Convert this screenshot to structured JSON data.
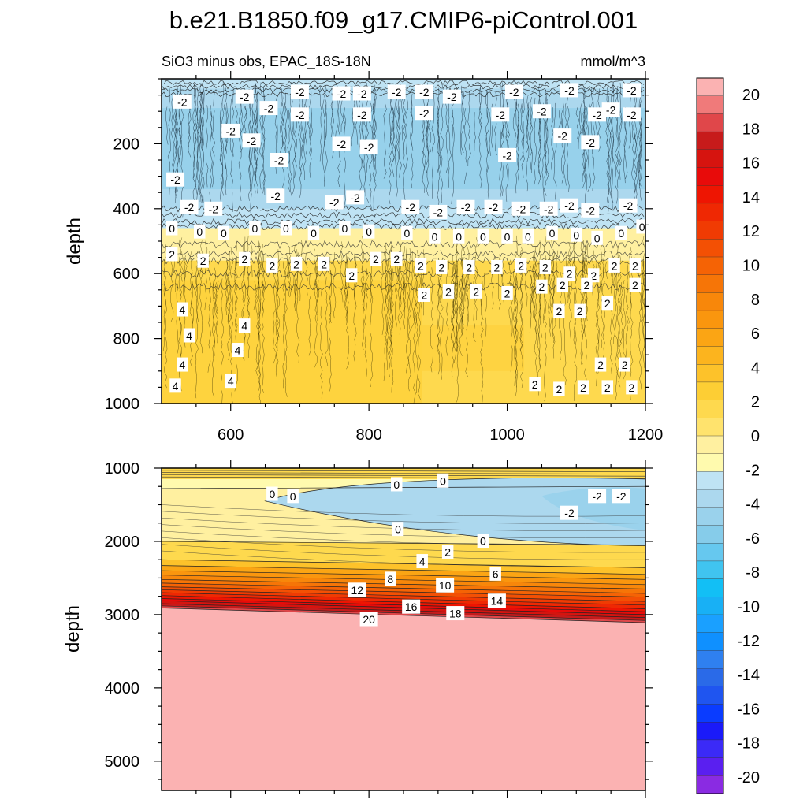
{
  "figure_title": "b.e21.B1850.f09_g17.CMIP6-piControl.001",
  "subtitle_left": "SiO3 minus obs, EPAC_18S-18N",
  "subtitle_right": "mmol/m^3",
  "colors": {
    "negative_ramp": [
      "#8a2be2",
      "#5a1ff0",
      "#3b2af7",
      "#1a1af9",
      "#0a3cff",
      "#1f55f0",
      "#2a6ae8",
      "#2f80f0",
      "#0f90ff",
      "#1aa0ff",
      "#18b0f5",
      "#12bff5",
      "#40c4f0",
      "#66c8ef",
      "#86ccea",
      "#9ad2ec",
      "#acd8ee",
      "#bfe3f4"
    ],
    "positive_ramp": [
      "#fffaae",
      "#fff0a0",
      "#ffe36d",
      "#fed94e",
      "#fdce34",
      "#fdc22a",
      "#fcb41e",
      "#fba514",
      "#fa960e",
      "#f8870a",
      "#f67507",
      "#f56305",
      "#f35004",
      "#f03b03",
      "#ef2803",
      "#ee1502",
      "#e80b0a",
      "#d6140f",
      "#c71b1b",
      "#e0474a",
      "#f07a7a",
      "#fbb2b2"
    ]
  },
  "chart_data": [
    {
      "type": "contour",
      "panel": "upper",
      "ylabel": "depth",
      "xlim": [
        500,
        1200
      ],
      "ylim": [
        1000,
        0
      ],
      "xticks": [
        "600",
        "800",
        "1000",
        "1200"
      ],
      "yticks": [
        "200",
        "400",
        "600",
        "800",
        "1000"
      ],
      "depth_bands": [
        {
          "depth_top": 0,
          "depth_bottom": 30,
          "value": -1
        },
        {
          "depth_top": 30,
          "depth_bottom": 400,
          "value": -2
        },
        {
          "depth_top": 400,
          "depth_bottom": 460,
          "value": -0.5
        },
        {
          "depth_top": 460,
          "depth_bottom": 560,
          "value": 1
        },
        {
          "depth_top": 560,
          "depth_bottom": 1000,
          "value": 3
        }
      ],
      "contour_labels": [
        {
          "x": 530,
          "depth": 70,
          "text": "-2"
        },
        {
          "x": 620,
          "depth": 55,
          "text": "-2"
        },
        {
          "x": 700,
          "depth": 40,
          "text": "-2"
        },
        {
          "x": 760,
          "depth": 45,
          "text": "-2"
        },
        {
          "x": 790,
          "depth": 45,
          "text": "-2"
        },
        {
          "x": 840,
          "depth": 40,
          "text": "-2"
        },
        {
          "x": 880,
          "depth": 40,
          "text": "-2"
        },
        {
          "x": 920,
          "depth": 55,
          "text": "-2"
        },
        {
          "x": 1010,
          "depth": 40,
          "text": "-2"
        },
        {
          "x": 1090,
          "depth": 35,
          "text": "-2"
        },
        {
          "x": 1180,
          "depth": 35,
          "text": "-2"
        },
        {
          "x": 655,
          "depth": 90,
          "text": "-2"
        },
        {
          "x": 700,
          "depth": 110,
          "text": "-2"
        },
        {
          "x": 790,
          "depth": 110,
          "text": "-2"
        },
        {
          "x": 880,
          "depth": 105,
          "text": "-2"
        },
        {
          "x": 990,
          "depth": 110,
          "text": "-2"
        },
        {
          "x": 1050,
          "depth": 100,
          "text": "-2"
        },
        {
          "x": 1130,
          "depth": 110,
          "text": "-2"
        },
        {
          "x": 1150,
          "depth": 95,
          "text": "-2"
        },
        {
          "x": 1180,
          "depth": 110,
          "text": "-2"
        },
        {
          "x": 600,
          "depth": 160,
          "text": "-2"
        },
        {
          "x": 630,
          "depth": 190,
          "text": "-2"
        },
        {
          "x": 760,
          "depth": 200,
          "text": "-2"
        },
        {
          "x": 800,
          "depth": 210,
          "text": "-2"
        },
        {
          "x": 1080,
          "depth": 175,
          "text": "-2"
        },
        {
          "x": 1120,
          "depth": 195,
          "text": "-2"
        },
        {
          "x": 670,
          "depth": 250,
          "text": "-2"
        },
        {
          "x": 1000,
          "depth": 235,
          "text": "-2"
        },
        {
          "x": 520,
          "depth": 310,
          "text": "-2"
        },
        {
          "x": 665,
          "depth": 360,
          "text": "-2"
        },
        {
          "x": 750,
          "depth": 380,
          "text": "-2"
        },
        {
          "x": 780,
          "depth": 365,
          "text": "-2"
        },
        {
          "x": 540,
          "depth": 395,
          "text": "-2"
        },
        {
          "x": 575,
          "depth": 400,
          "text": "-2"
        },
        {
          "x": 860,
          "depth": 395,
          "text": "-2"
        },
        {
          "x": 900,
          "depth": 410,
          "text": "-2"
        },
        {
          "x": 940,
          "depth": 395,
          "text": "-2"
        },
        {
          "x": 980,
          "depth": 395,
          "text": "-2"
        },
        {
          "x": 1020,
          "depth": 400,
          "text": "-2"
        },
        {
          "x": 1060,
          "depth": 400,
          "text": "-2"
        },
        {
          "x": 1090,
          "depth": 390,
          "text": "-2"
        },
        {
          "x": 1120,
          "depth": 405,
          "text": "-2"
        },
        {
          "x": 1175,
          "depth": 390,
          "text": "-2"
        },
        {
          "x": 515,
          "depth": 460,
          "text": "0"
        },
        {
          "x": 555,
          "depth": 470,
          "text": "0"
        },
        {
          "x": 590,
          "depth": 475,
          "text": "0"
        },
        {
          "x": 635,
          "depth": 460,
          "text": "0"
        },
        {
          "x": 680,
          "depth": 460,
          "text": "0"
        },
        {
          "x": 720,
          "depth": 475,
          "text": "0"
        },
        {
          "x": 765,
          "depth": 460,
          "text": "0"
        },
        {
          "x": 800,
          "depth": 470,
          "text": "0"
        },
        {
          "x": 855,
          "depth": 475,
          "text": "0"
        },
        {
          "x": 895,
          "depth": 485,
          "text": "0"
        },
        {
          "x": 930,
          "depth": 485,
          "text": "0"
        },
        {
          "x": 965,
          "depth": 485,
          "text": "0"
        },
        {
          "x": 1000,
          "depth": 485,
          "text": "0"
        },
        {
          "x": 1030,
          "depth": 485,
          "text": "0"
        },
        {
          "x": 1065,
          "depth": 475,
          "text": "0"
        },
        {
          "x": 1100,
          "depth": 480,
          "text": "0"
        },
        {
          "x": 1130,
          "depth": 490,
          "text": "0"
        },
        {
          "x": 1165,
          "depth": 475,
          "text": "0"
        },
        {
          "x": 1195,
          "depth": 455,
          "text": "0"
        },
        {
          "x": 515,
          "depth": 540,
          "text": "2"
        },
        {
          "x": 560,
          "depth": 560,
          "text": "2"
        },
        {
          "x": 620,
          "depth": 555,
          "text": "2"
        },
        {
          "x": 660,
          "depth": 575,
          "text": "2"
        },
        {
          "x": 695,
          "depth": 570,
          "text": "2"
        },
        {
          "x": 735,
          "depth": 570,
          "text": "2"
        },
        {
          "x": 775,
          "depth": 605,
          "text": "2"
        },
        {
          "x": 810,
          "depth": 555,
          "text": "2"
        },
        {
          "x": 840,
          "depth": 555,
          "text": "2"
        },
        {
          "x": 875,
          "depth": 575,
          "text": "2"
        },
        {
          "x": 905,
          "depth": 580,
          "text": "2"
        },
        {
          "x": 945,
          "depth": 580,
          "text": "2"
        },
        {
          "x": 985,
          "depth": 580,
          "text": "2"
        },
        {
          "x": 1020,
          "depth": 575,
          "text": "2"
        },
        {
          "x": 1055,
          "depth": 580,
          "text": "2"
        },
        {
          "x": 1090,
          "depth": 600,
          "text": "2"
        },
        {
          "x": 1125,
          "depth": 605,
          "text": "2"
        },
        {
          "x": 1155,
          "depth": 575,
          "text": "2"
        },
        {
          "x": 1185,
          "depth": 575,
          "text": "2"
        },
        {
          "x": 880,
          "depth": 665,
          "text": "2"
        },
        {
          "x": 915,
          "depth": 655,
          "text": "2"
        },
        {
          "x": 955,
          "depth": 655,
          "text": "2"
        },
        {
          "x": 1000,
          "depth": 660,
          "text": "2"
        },
        {
          "x": 1050,
          "depth": 640,
          "text": "2"
        },
        {
          "x": 1080,
          "depth": 635,
          "text": "2"
        },
        {
          "x": 1115,
          "depth": 635,
          "text": "2"
        },
        {
          "x": 1185,
          "depth": 635,
          "text": "2"
        },
        {
          "x": 1075,
          "depth": 715,
          "text": "2"
        },
        {
          "x": 1105,
          "depth": 715,
          "text": "2"
        },
        {
          "x": 1145,
          "depth": 690,
          "text": "2"
        },
        {
          "x": 530,
          "depth": 710,
          "text": "4"
        },
        {
          "x": 620,
          "depth": 760,
          "text": "4"
        },
        {
          "x": 540,
          "depth": 790,
          "text": "4"
        },
        {
          "x": 610,
          "depth": 835,
          "text": "4"
        },
        {
          "x": 530,
          "depth": 880,
          "text": "4"
        },
        {
          "x": 600,
          "depth": 930,
          "text": "4"
        },
        {
          "x": 520,
          "depth": 945,
          "text": "4"
        },
        {
          "x": 1135,
          "depth": 880,
          "text": "2"
        },
        {
          "x": 1170,
          "depth": 880,
          "text": "2"
        },
        {
          "x": 1040,
          "depth": 940,
          "text": "2"
        },
        {
          "x": 1075,
          "depth": 955,
          "text": "2"
        },
        {
          "x": 1110,
          "depth": 950,
          "text": "2"
        },
        {
          "x": 1145,
          "depth": 950,
          "text": "2"
        },
        {
          "x": 1180,
          "depth": 950,
          "text": "2"
        }
      ]
    },
    {
      "type": "contour",
      "panel": "lower",
      "ylabel": "depth",
      "xlim": [
        500,
        1200
      ],
      "ylim": [
        5400,
        1000
      ],
      "yticks": [
        "1000",
        "2000",
        "3000",
        "4000",
        "5000"
      ],
      "contour_labels": [
        {
          "x": 840,
          "depth": 1220,
          "text": "0"
        },
        {
          "x": 907,
          "depth": 1170,
          "text": "0"
        },
        {
          "x": 660,
          "depth": 1350,
          "text": "0"
        },
        {
          "x": 690,
          "depth": 1380,
          "text": "0"
        },
        {
          "x": 1130,
          "depth": 1380,
          "text": "-2"
        },
        {
          "x": 1165,
          "depth": 1380,
          "text": "-2"
        },
        {
          "x": 1090,
          "depth": 1610,
          "text": "-2"
        },
        {
          "x": 842,
          "depth": 1830,
          "text": "0"
        },
        {
          "x": 965,
          "depth": 1990,
          "text": "0"
        },
        {
          "x": 914,
          "depth": 2140,
          "text": "2"
        },
        {
          "x": 877,
          "depth": 2270,
          "text": "4"
        },
        {
          "x": 983,
          "depth": 2440,
          "text": "6"
        },
        {
          "x": 831,
          "depth": 2510,
          "text": "8"
        },
        {
          "x": 910,
          "depth": 2600,
          "text": "10"
        },
        {
          "x": 783,
          "depth": 2660,
          "text": "12"
        },
        {
          "x": 985,
          "depth": 2810,
          "text": "14"
        },
        {
          "x": 861,
          "depth": 2890,
          "text": "16"
        },
        {
          "x": 925,
          "depth": 2980,
          "text": "18"
        },
        {
          "x": 800,
          "depth": 3060,
          "text": "20"
        }
      ]
    }
  ],
  "colorbar": {
    "labels": [
      "20",
      "18",
      "16",
      "14",
      "12",
      "10",
      "8",
      "6",
      "4",
      "2",
      "0",
      "-2",
      "-4",
      "-6",
      "-8",
      "-10",
      "-12",
      "-14",
      "-16",
      "-18",
      "-20"
    ]
  }
}
